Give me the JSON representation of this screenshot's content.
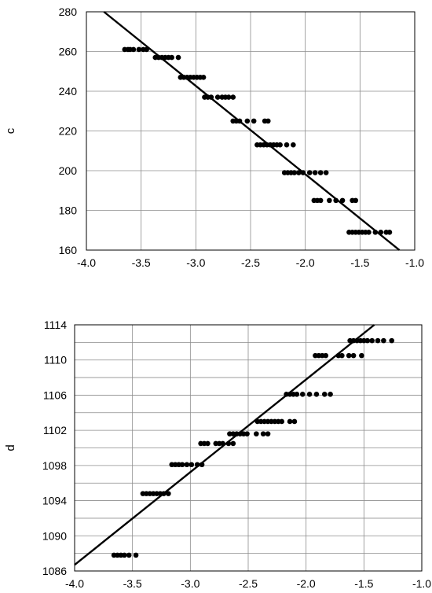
{
  "chart_data": [
    {
      "type": "scatter",
      "title": "",
      "xlabel": "",
      "ylabel": "c",
      "xlim": [
        -4.0,
        -1.0
      ],
      "ylim": [
        160,
        280
      ],
      "grid": true,
      "xticks": [
        -4.0,
        -3.5,
        -3.0,
        -2.5,
        -2.0,
        -1.5,
        -1.0
      ],
      "yticks": [
        160,
        180,
        200,
        220,
        240,
        260,
        280
      ],
      "xtick_labels": [
        "-4.0",
        "-3.5",
        "-3.0",
        "-2.5",
        "-2.0",
        "-1.5",
        "-1.0"
      ],
      "ytick_labels": [
        "160",
        "180",
        "200",
        "220",
        "240",
        "260",
        "280"
      ],
      "points": [
        [
          -3.65,
          261
        ],
        [
          -3.62,
          261
        ],
        [
          -3.6,
          261
        ],
        [
          -3.57,
          261
        ],
        [
          -3.52,
          261
        ],
        [
          -3.48,
          261
        ],
        [
          -3.45,
          261
        ],
        [
          -3.37,
          257
        ],
        [
          -3.34,
          257
        ],
        [
          -3.31,
          257
        ],
        [
          -3.28,
          257
        ],
        [
          -3.25,
          257
        ],
        [
          -3.22,
          257
        ],
        [
          -3.16,
          257
        ],
        [
          -3.14,
          247
        ],
        [
          -3.11,
          247
        ],
        [
          -3.08,
          247
        ],
        [
          -3.05,
          247
        ],
        [
          -3.02,
          247
        ],
        [
          -2.99,
          247
        ],
        [
          -2.96,
          247
        ],
        [
          -2.93,
          247
        ],
        [
          -2.92,
          237
        ],
        [
          -2.89,
          237
        ],
        [
          -2.86,
          237
        ],
        [
          -2.8,
          237
        ],
        [
          -2.76,
          237
        ],
        [
          -2.73,
          237
        ],
        [
          -2.7,
          237
        ],
        [
          -2.66,
          237
        ],
        [
          -2.66,
          225
        ],
        [
          -2.63,
          225
        ],
        [
          -2.6,
          225
        ],
        [
          -2.53,
          225
        ],
        [
          -2.47,
          225
        ],
        [
          -2.37,
          225
        ],
        [
          -2.34,
          225
        ],
        [
          -2.44,
          213
        ],
        [
          -2.41,
          213
        ],
        [
          -2.38,
          213
        ],
        [
          -2.35,
          213
        ],
        [
          -2.32,
          213
        ],
        [
          -2.29,
          213
        ],
        [
          -2.26,
          213
        ],
        [
          -2.23,
          213
        ],
        [
          -2.17,
          213
        ],
        [
          -2.11,
          213
        ],
        [
          -2.19,
          199
        ],
        [
          -2.16,
          199
        ],
        [
          -2.13,
          199
        ],
        [
          -2.1,
          199
        ],
        [
          -2.06,
          199
        ],
        [
          -2.02,
          199
        ],
        [
          -1.96,
          199
        ],
        [
          -1.91,
          199
        ],
        [
          -1.86,
          199
        ],
        [
          -1.81,
          199
        ],
        [
          -1.92,
          185
        ],
        [
          -1.89,
          185
        ],
        [
          -1.86,
          185
        ],
        [
          -1.78,
          185
        ],
        [
          -1.72,
          185
        ],
        [
          -1.66,
          185
        ],
        [
          -1.57,
          185
        ],
        [
          -1.54,
          185
        ],
        [
          -1.6,
          169
        ],
        [
          -1.57,
          169
        ],
        [
          -1.54,
          169
        ],
        [
          -1.51,
          169
        ],
        [
          -1.48,
          169
        ],
        [
          -1.45,
          169
        ],
        [
          -1.42,
          169
        ],
        [
          -1.36,
          169
        ],
        [
          -1.31,
          169
        ],
        [
          -1.26,
          169
        ],
        [
          -1.23,
          169
        ]
      ],
      "fit_line": {
        "x": [
          -3.84,
          -1.14
        ],
        "y": [
          280,
          160
        ]
      }
    },
    {
      "type": "scatter",
      "title": "",
      "xlabel": "",
      "ylabel": "d",
      "xlim": [
        -4.0,
        -1.0
      ],
      "ylim": [
        1086,
        1114
      ],
      "grid": true,
      "xticks": [
        -4.0,
        -3.5,
        -3.0,
        -2.5,
        -2.0,
        -1.5,
        -1.0
      ],
      "yticks": [
        1086,
        1090,
        1094,
        1098,
        1102,
        1106,
        1110,
        1114
      ],
      "minor_yticks": [
        1088,
        1092,
        1096,
        1100,
        1104,
        1108,
        1112
      ],
      "xtick_labels": [
        "-4.0",
        "-3.5",
        "-3.0",
        "-2.5",
        "-2.0",
        "-1.5",
        "-1.0"
      ],
      "ytick_labels": [
        "1086",
        "1090",
        "1094",
        "1098",
        "1102",
        "1106",
        "1110",
        "1114"
      ],
      "points": [
        [
          -3.66,
          1087.8
        ],
        [
          -3.63,
          1087.8
        ],
        [
          -3.6,
          1087.8
        ],
        [
          -3.57,
          1087.8
        ],
        [
          -3.53,
          1087.8
        ],
        [
          -3.47,
          1087.8
        ],
        [
          -3.41,
          1094.8
        ],
        [
          -3.38,
          1094.8
        ],
        [
          -3.35,
          1094.8
        ],
        [
          -3.32,
          1094.8
        ],
        [
          -3.29,
          1094.8
        ],
        [
          -3.26,
          1094.8
        ],
        [
          -3.23,
          1094.8
        ],
        [
          -3.19,
          1094.8
        ],
        [
          -3.16,
          1098.1
        ],
        [
          -3.13,
          1098.1
        ],
        [
          -3.1,
          1098.1
        ],
        [
          -3.07,
          1098.1
        ],
        [
          -3.03,
          1098.1
        ],
        [
          -2.99,
          1098.1
        ],
        [
          -2.94,
          1098.1
        ],
        [
          -2.9,
          1098.1
        ],
        [
          -2.91,
          1100.5
        ],
        [
          -2.88,
          1100.5
        ],
        [
          -2.85,
          1100.5
        ],
        [
          -2.78,
          1100.5
        ],
        [
          -2.75,
          1100.5
        ],
        [
          -2.72,
          1100.5
        ],
        [
          -2.67,
          1100.5
        ],
        [
          -2.63,
          1100.5
        ],
        [
          -2.66,
          1101.6
        ],
        [
          -2.63,
          1101.6
        ],
        [
          -2.6,
          1101.6
        ],
        [
          -2.57,
          1101.6
        ],
        [
          -2.54,
          1101.6
        ],
        [
          -2.51,
          1101.6
        ],
        [
          -2.43,
          1101.6
        ],
        [
          -2.37,
          1101.6
        ],
        [
          -2.33,
          1101.6
        ],
        [
          -2.42,
          1103
        ],
        [
          -2.39,
          1103
        ],
        [
          -2.36,
          1103
        ],
        [
          -2.33,
          1103
        ],
        [
          -2.3,
          1103
        ],
        [
          -2.27,
          1103
        ],
        [
          -2.24,
          1103
        ],
        [
          -2.21,
          1103
        ],
        [
          -2.14,
          1103
        ],
        [
          -2.1,
          1103
        ],
        [
          -2.17,
          1106.1
        ],
        [
          -2.14,
          1106.1
        ],
        [
          -2.11,
          1106.1
        ],
        [
          -2.08,
          1106.1
        ],
        [
          -2.03,
          1106.1
        ],
        [
          -1.97,
          1106.1
        ],
        [
          -1.91,
          1106.1
        ],
        [
          -1.84,
          1106.1
        ],
        [
          -1.79,
          1106.1
        ],
        [
          -1.92,
          1110.5
        ],
        [
          -1.89,
          1110.5
        ],
        [
          -1.86,
          1110.5
        ],
        [
          -1.83,
          1110.5
        ],
        [
          -1.72,
          1110.5
        ],
        [
          -1.69,
          1110.5
        ],
        [
          -1.63,
          1110.5
        ],
        [
          -1.59,
          1110.5
        ],
        [
          -1.52,
          1110.5
        ],
        [
          -1.62,
          1112.2
        ],
        [
          -1.59,
          1112.2
        ],
        [
          -1.56,
          1112.2
        ],
        [
          -1.53,
          1112.2
        ],
        [
          -1.5,
          1112.2
        ],
        [
          -1.47,
          1112.2
        ],
        [
          -1.43,
          1112.2
        ],
        [
          -1.38,
          1112.2
        ],
        [
          -1.33,
          1112.2
        ],
        [
          -1.26,
          1112.2
        ]
      ],
      "fit_line": {
        "x": [
          -4.0,
          -1.41
        ],
        "y": [
          1086.7,
          1114
        ]
      }
    }
  ]
}
